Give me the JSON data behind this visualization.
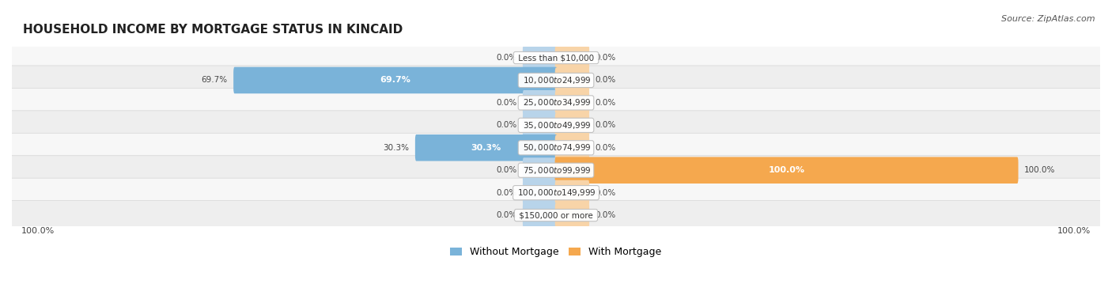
{
  "title": "HOUSEHOLD INCOME BY MORTGAGE STATUS IN KINCAID",
  "source": "Source: ZipAtlas.com",
  "categories": [
    "Less than $10,000",
    "$10,000 to $24,999",
    "$25,000 to $34,999",
    "$35,000 to $49,999",
    "$50,000 to $74,999",
    "$75,000 to $99,999",
    "$100,000 to $149,999",
    "$150,000 or more"
  ],
  "without_mortgage": [
    0.0,
    69.7,
    0.0,
    0.0,
    30.3,
    0.0,
    0.0,
    0.0
  ],
  "with_mortgage": [
    0.0,
    0.0,
    0.0,
    0.0,
    0.0,
    100.0,
    0.0,
    0.0
  ],
  "color_without": "#7ab3d9",
  "color_with": "#f5a84e",
  "color_without_light": "#b8d4ea",
  "color_with_light": "#f8d4a8",
  "legend_without": "Without Mortgage",
  "legend_with": "With Mortgage",
  "axis_label_left": "100.0%",
  "axis_label_right": "100.0%",
  "max_val": 100.0,
  "stub_size": 7.0,
  "bar_height": 0.68,
  "row_bg_light": "#f7f7f7",
  "row_bg_dark": "#eeeeee",
  "row_border": "#d5d5d5"
}
